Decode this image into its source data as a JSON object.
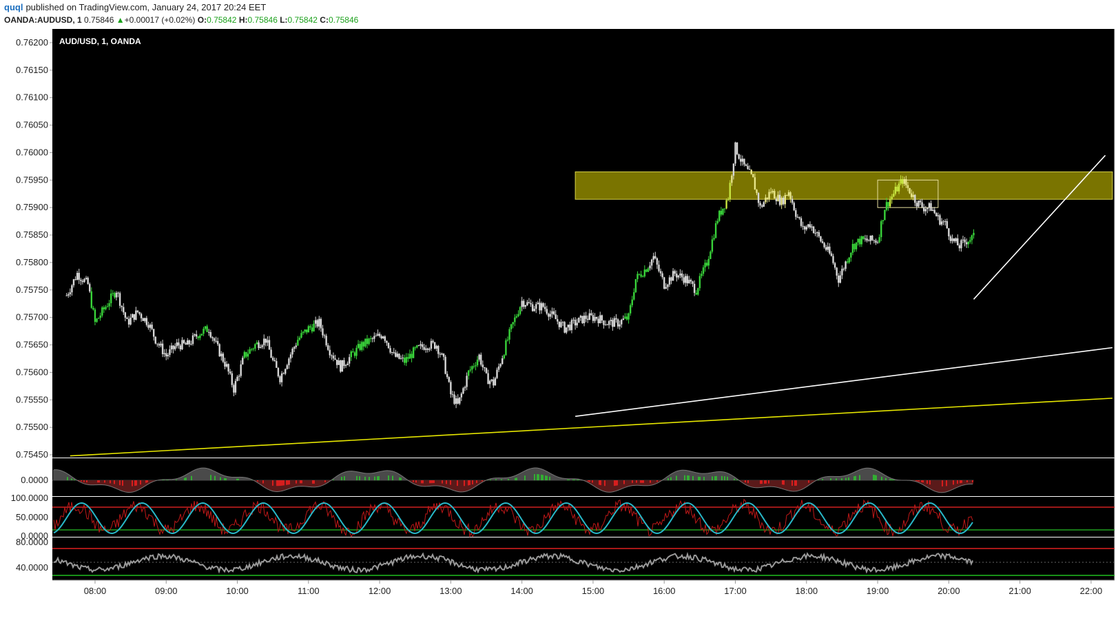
{
  "header": {
    "author": "quql",
    "published": "published on TradingView.com, January 24, 2017 20:24 EET",
    "symbol": "OANDA:AUDUSD, 1",
    "last": "0.75846",
    "up_arrow": "▲",
    "change": "+0.00017 (+0.02%)",
    "o_label": "O:",
    "o_value": "0.75842",
    "h_label": "H:",
    "h_value": "0.75846",
    "l_label": "L:",
    "l_value": "0.75842",
    "c_label": "C:",
    "c_value": "0.75846"
  },
  "chart_data": {
    "type": "line",
    "title": "AUD/USD, 1, OANDA",
    "ylim": [
      0.75445,
      0.76225
    ],
    "y_ticks": [
      "0.76200",
      "0.76150",
      "0.76100",
      "0.76050",
      "0.76000",
      "0.75950",
      "0.75900",
      "0.75850",
      "0.75800",
      "0.75750",
      "0.75700",
      "0.75650",
      "0.75600",
      "0.75550",
      "0.75500",
      "0.75450"
    ],
    "x_ticks": [
      "08:00",
      "09:00",
      "10:00",
      "11:00",
      "12:00",
      "13:00",
      "14:00",
      "15:00",
      "16:00",
      "17:00",
      "18:00",
      "19:00",
      "20:00",
      "21:00",
      "22:00"
    ],
    "x_hours": [
      8,
      9,
      10,
      11,
      12,
      13,
      14,
      15,
      16,
      17,
      18,
      19,
      20,
      21,
      22
    ],
    "price_path": [
      [
        7.6,
        0.7574
      ],
      [
        7.75,
        0.7578
      ],
      [
        7.9,
        0.7576
      ],
      [
        8.0,
        0.7569
      ],
      [
        8.15,
        0.7572
      ],
      [
        8.3,
        0.7575
      ],
      [
        8.45,
        0.7569
      ],
      [
        8.6,
        0.7571
      ],
      [
        8.75,
        0.7569
      ],
      [
        8.85,
        0.7566
      ],
      [
        9.0,
        0.7563
      ],
      [
        9.15,
        0.7565
      ],
      [
        9.3,
        0.7565
      ],
      [
        9.45,
        0.7567
      ],
      [
        9.6,
        0.7568
      ],
      [
        9.7,
        0.7565
      ],
      [
        9.85,
        0.7561
      ],
      [
        9.95,
        0.7557
      ],
      [
        10.1,
        0.7563
      ],
      [
        10.25,
        0.7565
      ],
      [
        10.4,
        0.7566
      ],
      [
        10.5,
        0.7562
      ],
      [
        10.6,
        0.7559
      ],
      [
        10.7,
        0.7562
      ],
      [
        10.85,
        0.7566
      ],
      [
        11.0,
        0.7568
      ],
      [
        11.15,
        0.7569
      ],
      [
        11.3,
        0.7564
      ],
      [
        11.45,
        0.7561
      ],
      [
        11.6,
        0.7563
      ],
      [
        11.75,
        0.7565
      ],
      [
        11.9,
        0.7566
      ],
      [
        12.05,
        0.7567
      ],
      [
        12.2,
        0.7563
      ],
      [
        12.35,
        0.7562
      ],
      [
        12.5,
        0.7564
      ],
      [
        12.65,
        0.7565
      ],
      [
        12.8,
        0.7565
      ],
      [
        12.9,
        0.7562
      ],
      [
        13.0,
        0.7556
      ],
      [
        13.1,
        0.7554
      ],
      [
        13.25,
        0.756
      ],
      [
        13.4,
        0.7563
      ],
      [
        13.5,
        0.7559
      ],
      [
        13.6,
        0.7558
      ],
      [
        13.75,
        0.7564
      ],
      [
        13.85,
        0.7568
      ],
      [
        14.0,
        0.7573
      ],
      [
        14.15,
        0.7572
      ],
      [
        14.3,
        0.7572
      ],
      [
        14.45,
        0.757
      ],
      [
        14.6,
        0.7568
      ],
      [
        14.75,
        0.7569
      ],
      [
        14.9,
        0.757
      ],
      [
        15.05,
        0.757
      ],
      [
        15.2,
        0.7569
      ],
      [
        15.35,
        0.7569
      ],
      [
        15.5,
        0.757
      ],
      [
        15.6,
        0.7577
      ],
      [
        15.75,
        0.7579
      ],
      [
        15.85,
        0.7581
      ],
      [
        16.0,
        0.7576
      ],
      [
        16.15,
        0.7578
      ],
      [
        16.3,
        0.7577
      ],
      [
        16.45,
        0.7575
      ],
      [
        16.6,
        0.758
      ],
      [
        16.75,
        0.7588
      ],
      [
        16.9,
        0.7592
      ],
      [
        17.0,
        0.7601
      ],
      [
        17.1,
        0.7598
      ],
      [
        17.25,
        0.7595
      ],
      [
        17.35,
        0.759
      ],
      [
        17.5,
        0.7593
      ],
      [
        17.65,
        0.7591
      ],
      [
        17.75,
        0.7593
      ],
      [
        17.85,
        0.7589
      ],
      [
        17.95,
        0.7586
      ],
      [
        18.05,
        0.7587
      ],
      [
        18.15,
        0.7585
      ],
      [
        18.25,
        0.7583
      ],
      [
        18.35,
        0.7581
      ],
      [
        18.45,
        0.7577
      ],
      [
        18.55,
        0.758
      ],
      [
        18.65,
        0.7583
      ],
      [
        18.75,
        0.7584
      ],
      [
        18.85,
        0.7584
      ],
      [
        19.0,
        0.7584
      ],
      [
        19.1,
        0.759
      ],
      [
        19.25,
        0.7593
      ],
      [
        19.35,
        0.7595
      ],
      [
        19.45,
        0.7593
      ],
      [
        19.55,
        0.7591
      ],
      [
        19.65,
        0.759
      ],
      [
        19.75,
        0.759
      ],
      [
        19.85,
        0.7588
      ],
      [
        19.95,
        0.7587
      ],
      [
        20.05,
        0.7584
      ],
      [
        20.15,
        0.7583
      ],
      [
        20.25,
        0.7584
      ],
      [
        20.35,
        0.75846
      ]
    ],
    "green_ranges": [
      [
        7.95,
        8.3
      ],
      [
        9.45,
        9.6
      ],
      [
        10.1,
        10.3
      ],
      [
        10.85,
        11.1
      ],
      [
        11.6,
        11.9
      ],
      [
        12.35,
        12.55
      ],
      [
        13.25,
        13.4
      ],
      [
        13.75,
        14.0
      ],
      [
        15.45,
        15.8
      ],
      [
        16.45,
        16.95
      ],
      [
        18.55,
        18.8
      ],
      [
        19.0,
        19.35
      ],
      [
        20.25,
        20.35
      ]
    ],
    "zone": {
      "x_from": 14.75,
      "x_to": 22.3,
      "y_top": 0.75965,
      "y_bottom": 0.75915,
      "color": "#7a7400"
    },
    "small_box": {
      "x_from": 19.0,
      "x_to": 19.85,
      "y_top": 0.7595,
      "y_bottom": 0.759
    },
    "trendlines": [
      {
        "x1": 7.65,
        "y1": 0.75448,
        "x2": 22.3,
        "y2": 0.75553,
        "color": "#e6e600"
      },
      {
        "x1": 14.75,
        "y1": 0.7552,
        "x2": 22.3,
        "y2": 0.75645,
        "color": "#ffffff"
      },
      {
        "x1": 20.35,
        "y1": 0.75733,
        "x2": 22.2,
        "y2": 0.75995,
        "color": "#ffffff"
      }
    ],
    "oscillators": [
      {
        "label": "0.0000"
      },
      {
        "labels": [
          "100.0000",
          "50.0000",
          "0.0000"
        ]
      },
      {
        "labels": [
          "80.0000",
          "40.0000"
        ]
      }
    ]
  }
}
